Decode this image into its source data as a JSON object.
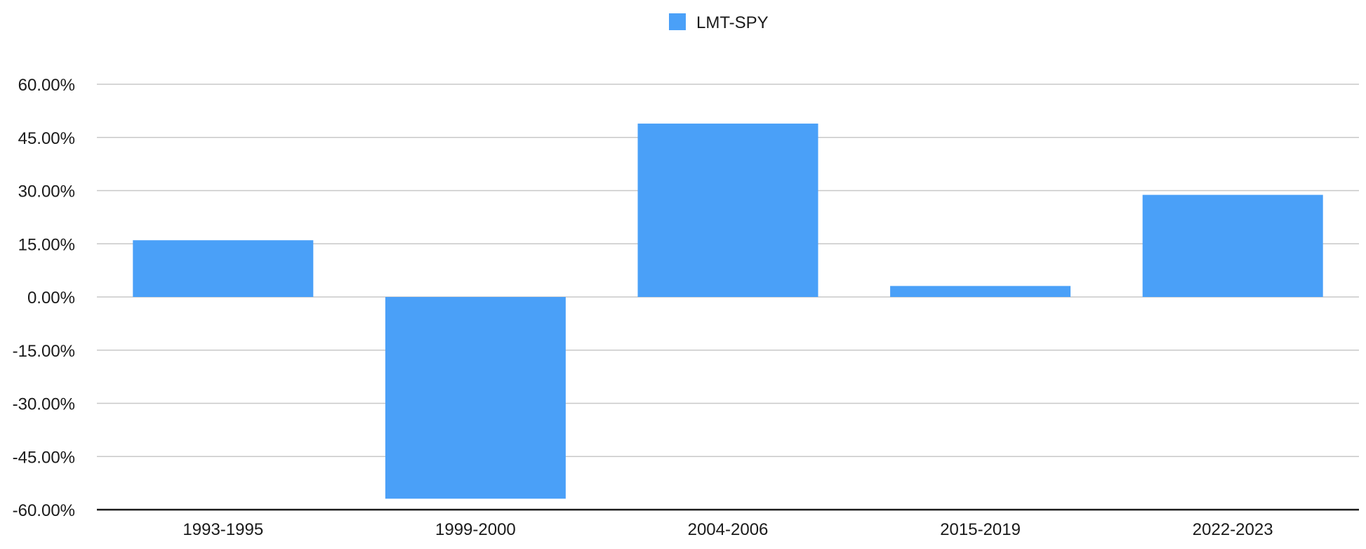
{
  "chart_data": {
    "type": "bar",
    "categories": [
      "1993-1995",
      "1999-2000",
      "2004-2006",
      "2015-2019",
      "2022-2023"
    ],
    "series": [
      {
        "name": "LMT-SPY",
        "values": [
          16.0,
          -56.9,
          48.9,
          3.1,
          28.8
        ],
        "color": "#4aa0f8"
      }
    ],
    "ylim": [
      -60,
      60
    ],
    "yticks": [
      60,
      45,
      30,
      15,
      0,
      -15,
      -30,
      -45,
      -60
    ],
    "ytick_labels": [
      "60.00%",
      "45.00%",
      "30.00%",
      "15.00%",
      "0.00%",
      "-15.00%",
      "-30.00%",
      "-45.00%",
      "-60.00%"
    ],
    "grid": true,
    "legend_position": "top-center",
    "title": "",
    "xlabel": "",
    "ylabel": ""
  }
}
